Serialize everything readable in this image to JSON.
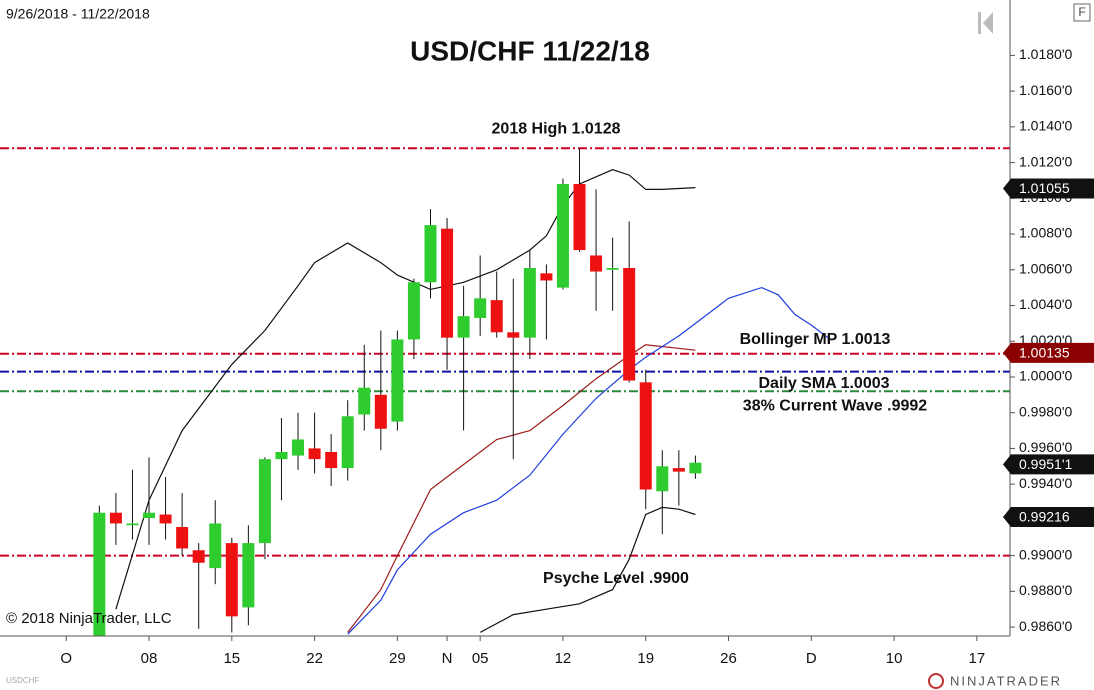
{
  "chart_data": {
    "type": "candlestick",
    "title": "USD/CHF 11/22/18",
    "date_range": "9/26/2018 - 11/22/2018",
    "symbol": "USDCHF",
    "copyright": "© 2018 NinjaTrader, LLC",
    "brand": "NINJATRADER",
    "menu_button": "F",
    "up_color": "#2ecc2e",
    "down_color": "#ee1111",
    "x": [
      "2018-10-03",
      "2018-10-04",
      "2018-10-05",
      "2018-10-08",
      "2018-10-09",
      "2018-10-10",
      "2018-10-11",
      "2018-10-12",
      "2018-10-15",
      "2018-10-16",
      "2018-10-17",
      "2018-10-18",
      "2018-10-19",
      "2018-10-22",
      "2018-10-23",
      "2018-10-24",
      "2018-10-25",
      "2018-10-26",
      "2018-10-29",
      "2018-10-30",
      "2018-10-31",
      "2018-11-01",
      "2018-11-02",
      "2018-11-05",
      "2018-11-06",
      "2018-11-07",
      "2018-11-08",
      "2018-11-09",
      "2018-11-12",
      "2018-11-13",
      "2018-11-14",
      "2018-11-15",
      "2018-11-16",
      "2018-11-19",
      "2018-11-20",
      "2018-11-21",
      "2018-11-22"
    ],
    "open": [
      0.9853,
      0.9924,
      0.9917,
      0.9921,
      0.9923,
      0.9916,
      0.9903,
      0.9893,
      0.9907,
      0.9871,
      0.9907,
      0.9954,
      0.9956,
      0.996,
      0.9958,
      0.9949,
      0.9979,
      0.999,
      0.9975,
      1.0021,
      1.0053,
      1.0083,
      1.0022,
      1.0033,
      1.0043,
      1.0025,
      1.0022,
      1.0058,
      1.005,
      1.0108,
      1.0068,
      1.006,
      1.0061,
      0.9997,
      0.9936,
      0.9949,
      0.9946
    ],
    "high": [
      0.9928,
      0.9935,
      0.9948,
      0.9955,
      0.9944,
      0.9935,
      0.9907,
      0.9931,
      0.991,
      0.9917,
      0.9955,
      0.9977,
      0.998,
      0.998,
      0.9968,
      0.9987,
      1.0018,
      1.0026,
      1.0026,
      1.0055,
      1.0094,
      1.0089,
      1.0051,
      1.0068,
      1.0059,
      1.0055,
      1.0071,
      1.0063,
      1.0111,
      1.0128,
      1.0105,
      1.0078,
      1.0087,
      1.0004,
      0.9959,
      0.9959,
      0.9956
    ],
    "low": [
      0.9848,
      0.9906,
      0.9909,
      0.9906,
      0.9909,
      0.99,
      0.9859,
      0.9884,
      0.9857,
      0.9861,
      0.9898,
      0.9931,
      0.9948,
      0.9946,
      0.9939,
      0.9942,
      0.997,
      0.9959,
      0.997,
      1.001,
      1.0044,
      1.0004,
      0.997,
      1.0023,
      1.0022,
      0.9954,
      1.001,
      1.0021,
      1.0049,
      1.007,
      1.0037,
      1.0037,
      0.9997,
      0.9926,
      0.9912,
      0.9928,
      0.9943
    ],
    "close": [
      0.9924,
      0.9918,
      0.9918,
      0.9924,
      0.9918,
      0.9904,
      0.9896,
      0.9918,
      0.9866,
      0.9907,
      0.9954,
      0.9958,
      0.9965,
      0.9954,
      0.9949,
      0.9978,
      0.9994,
      0.9971,
      1.0021,
      1.0053,
      1.0085,
      1.0022,
      1.0034,
      1.0044,
      1.0025,
      1.0022,
      1.0061,
      1.0054,
      1.0108,
      1.0071,
      1.0059,
      1.0061,
      0.9998,
      0.9937,
      0.995,
      0.9947,
      0.9952
    ],
    "indicators": [
      {
        "color": "#111111",
        "x": [
          "2018-10-04",
          "2018-10-08",
          "2018-10-10",
          "2018-10-15",
          "2018-10-17",
          "2018-10-19",
          "2018-10-22",
          "2018-10-24",
          "2018-10-26",
          "2018-10-29",
          "2018-10-31",
          "2018-11-02",
          "2018-11-06",
          "2018-11-08",
          "2018-11-09",
          "2018-11-12",
          "2018-11-13",
          "2018-11-15",
          "2018-11-16",
          "2018-11-19",
          "2018-11-20",
          "2018-11-22"
        ],
        "values": [
          0.987,
          0.9931,
          0.997,
          1.0007,
          1.0026,
          1.0051,
          1.0064,
          1.0075,
          1.0064,
          1.0057,
          1.0049,
          1.0053,
          1.006,
          1.0071,
          1.0079,
          1.0096,
          1.0108,
          1.0116,
          1.0113,
          1.0105,
          1.0105,
          1.0106
        ]
      },
      {
        "color": "#111111",
        "x": [
          "2018-11-05",
          "2018-11-07",
          "2018-11-09",
          "2018-11-13",
          "2018-11-15",
          "2018-11-16",
          "2018-11-19",
          "2018-11-20",
          "2018-11-21",
          "2018-11-22"
        ],
        "values": [
          0.9857,
          0.9867,
          0.987,
          0.9873,
          0.9881,
          0.9898,
          0.9923,
          0.9927,
          0.9926,
          0.9923
        ]
      },
      {
        "color": "#9b1c1c",
        "x": [
          "2018-10-24",
          "2018-10-26",
          "2018-10-29",
          "2018-10-31",
          "2018-11-02",
          "2018-11-06",
          "2018-11-08",
          "2018-11-12",
          "2018-11-14",
          "2018-11-16",
          "2018-11-19",
          "2018-11-22"
        ],
        "values": [
          0.9857,
          0.9881,
          0.99,
          0.9937,
          0.9951,
          0.9965,
          0.997,
          0.9984,
          0.9999,
          1.0012,
          1.0018,
          1.0015
        ]
      },
      {
        "color": "#1f3fe0",
        "x": [
          "2018-10-24",
          "2018-10-26",
          "2018-10-29",
          "2018-10-31",
          "2018-11-02",
          "2018-11-06",
          "2018-11-08",
          "2018-11-12",
          "2018-11-14",
          "2018-11-16",
          "2018-11-19",
          "2018-11-21",
          "2018-11-23",
          "2018-11-26",
          "2018-11-28",
          "2018-11-29",
          "2018-11-30",
          "2018-12-03",
          "2018-12-04"
        ],
        "values": [
          0.9856,
          0.9875,
          0.9892,
          0.9912,
          0.9924,
          0.9931,
          0.9945,
          0.9968,
          0.9988,
          1.0004,
          1.0011,
          1.0023,
          1.0037,
          1.0044,
          1.005,
          1.0046,
          1.0035,
          1.0029,
          1.0022
        ]
      }
    ],
    "levels": [
      {
        "value": 1.0128,
        "label": "2018 High 1.0128",
        "color": "#cc0022"
      },
      {
        "value": 1.0013,
        "label": "Bollinger MP 1.0013",
        "color": "#cc0022"
      },
      {
        "value": 1.0003,
        "label": "Daily SMA  1.0003",
        "color": "#1010a8"
      },
      {
        "value": 0.9992,
        "label": "38% Current Wave .9992",
        "color": "#2a8a3a"
      },
      {
        "value": 0.99,
        "label": "Psyche Level .9900",
        "color": "#cc0022"
      }
    ],
    "price_markers": [
      {
        "value": 1.01055,
        "label": "1.01055",
        "color": "#111111"
      },
      {
        "value": 1.00135,
        "label": "1.00135",
        "color": "#8b0000"
      },
      {
        "value": 0.99511,
        "label": "0.9951'1",
        "color": "#111111"
      },
      {
        "value": 0.99216,
        "label": "0.99216",
        "color": "#111111"
      }
    ],
    "xlim": [
      "2018-09-25",
      "2018-12-19"
    ],
    "xticks": [
      {
        "value": "2018-10-01",
        "label": "O"
      },
      {
        "value": "2018-10-08",
        "label": "08"
      },
      {
        "value": "2018-10-15",
        "label": "15"
      },
      {
        "value": "2018-10-22",
        "label": "22"
      },
      {
        "value": "2018-10-29",
        "label": "29"
      },
      {
        "value": "2018-11-01",
        "label": "N"
      },
      {
        "value": "2018-11-05",
        "label": "05"
      },
      {
        "value": "2018-11-12",
        "label": "12"
      },
      {
        "value": "2018-11-19",
        "label": "19"
      },
      {
        "value": "2018-11-26",
        "label": "26"
      },
      {
        "value": "2018-12-03",
        "label": "D"
      },
      {
        "value": "2018-12-10",
        "label": "10"
      },
      {
        "value": "2018-12-17",
        "label": "17"
      }
    ],
    "ylim": [
      0.9855,
      1.0211
    ],
    "yticks": [
      {
        "value": 1.018,
        "label": "1.0180'0"
      },
      {
        "value": 1.016,
        "label": "1.0160'0"
      },
      {
        "value": 1.014,
        "label": "1.0140'0"
      },
      {
        "value": 1.012,
        "label": "1.0120'0"
      },
      {
        "value": 1.01,
        "label": "1.0100'0"
      },
      {
        "value": 1.008,
        "label": "1.0080'0"
      },
      {
        "value": 1.006,
        "label": "1.0060'0"
      },
      {
        "value": 1.004,
        "label": "1.0040'0"
      },
      {
        "value": 1.002,
        "label": "1.0020'0"
      },
      {
        "value": 1.0,
        "label": "1.0000'0"
      },
      {
        "value": 0.998,
        "label": "0.9980'0"
      },
      {
        "value": 0.996,
        "label": "0.9960'0"
      },
      {
        "value": 0.994,
        "label": "0.9940'0"
      },
      {
        "value": 0.992,
        "label": "0.9920'0"
      },
      {
        "value": 0.99,
        "label": "0.9900'0"
      },
      {
        "value": 0.988,
        "label": "0.9880'0"
      },
      {
        "value": 0.986,
        "label": "0.9860'0"
      }
    ]
  }
}
